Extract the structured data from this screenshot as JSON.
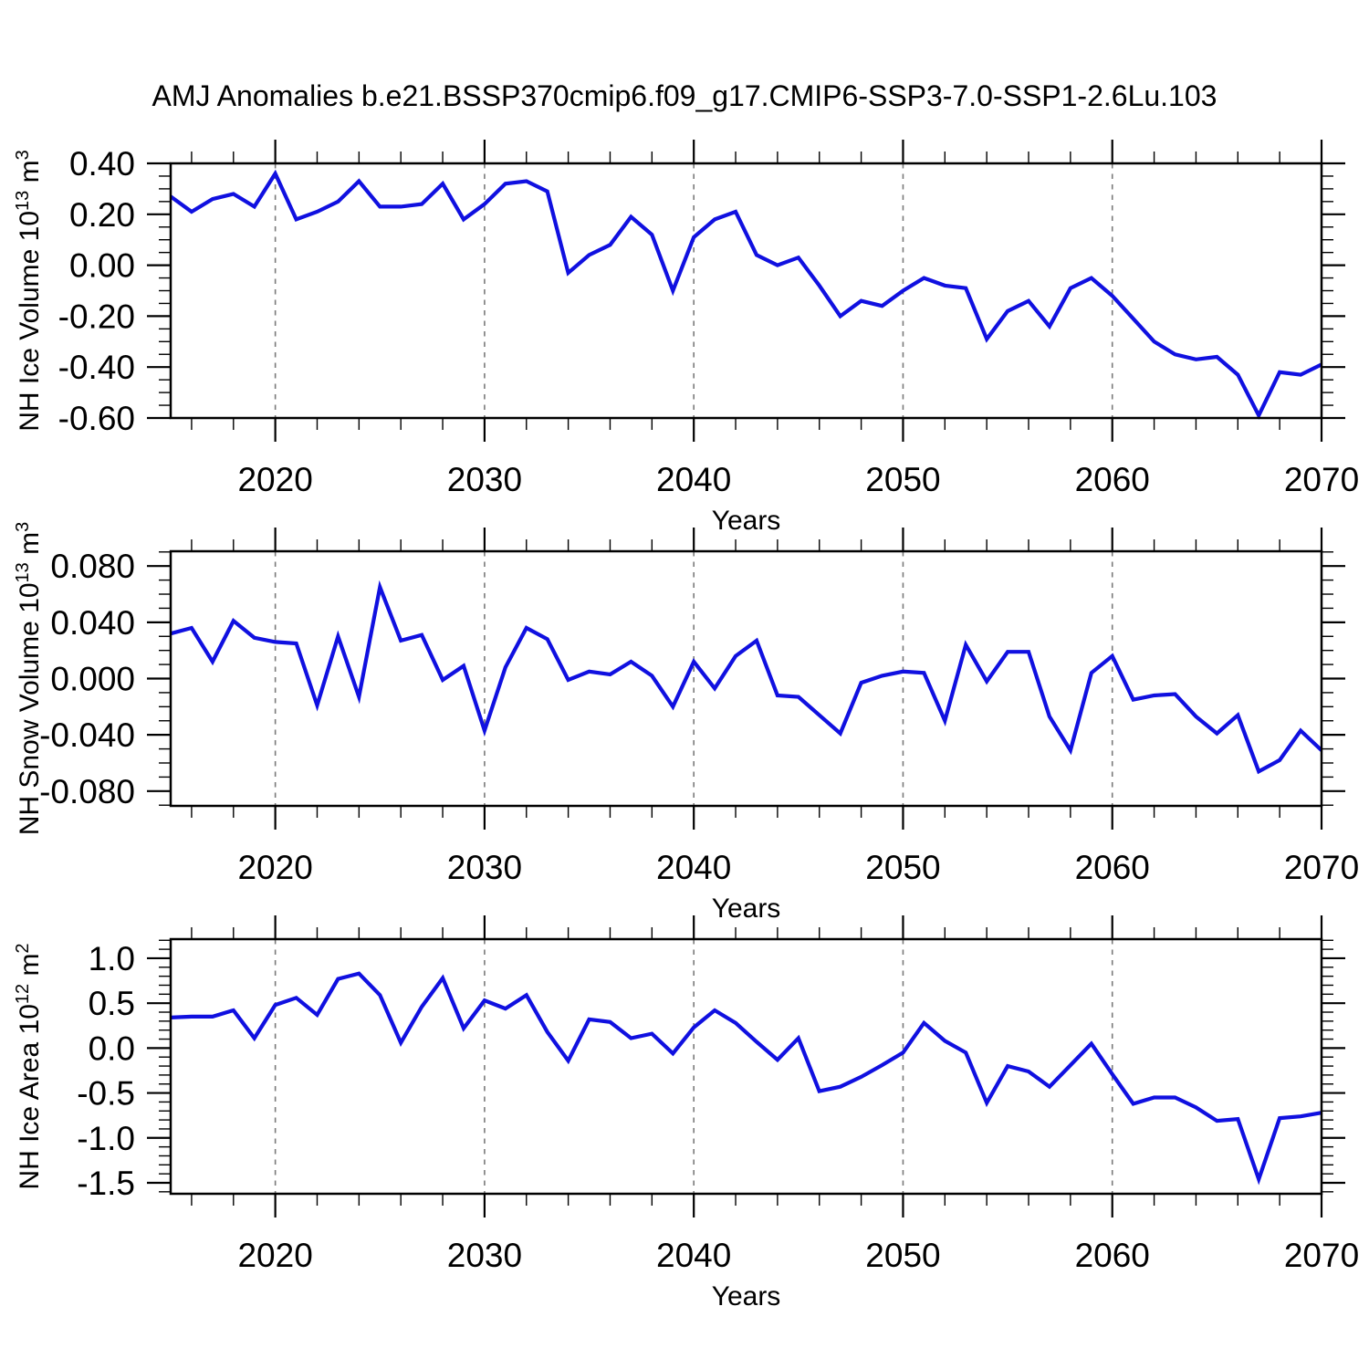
{
  "title": "AMJ Anomalies b.e21.BSSP370cmip6.f09_g17.CMIP6-SSP3-7.0-SSP1-2.6Lu.103",
  "x_axis": {
    "label": "Years",
    "start": 2015,
    "end": 2070,
    "major_ticks": [
      2020,
      2030,
      2040,
      2050,
      2060,
      2070
    ],
    "major_tick_labels": [
      "2020",
      "2030",
      "2040",
      "2050",
      "2060",
      "2070"
    ],
    "minor_tick_step": 2,
    "grid_years": [
      2020,
      2030,
      2040,
      2050,
      2060
    ]
  },
  "style": {
    "line_color": "#1010e0",
    "grid_color": "#7a7a7a",
    "axis_color": "#000000",
    "background": "#ffffff"
  },
  "chart_data": [
    {
      "type": "line",
      "name": "nh-ice-volume",
      "ylabel": "NH Ice Volume 10¹³ m³",
      "ylabel_parts": [
        {
          "t": "NH Ice Volume 10"
        },
        {
          "t": "13",
          "sup": true
        },
        {
          "t": " m"
        },
        {
          "t": "3",
          "sup": true
        }
      ],
      "ylim": [
        -0.6,
        0.4
      ],
      "yticks": [
        {
          "v": 0.4,
          "label": "0.40"
        },
        {
          "v": 0.2,
          "label": "0.20"
        },
        {
          "v": 0.0,
          "label": "0.00"
        },
        {
          "v": -0.2,
          "label": "-0.20"
        },
        {
          "v": -0.4,
          "label": "-0.40"
        },
        {
          "v": -0.6,
          "label": "-0.60"
        }
      ],
      "y_major_step": 0.2,
      "y_minor_step": 0.05,
      "x_start": 2015,
      "x_step": 1,
      "values": [
        0.27,
        0.21,
        0.26,
        0.28,
        0.23,
        0.36,
        0.18,
        0.21,
        0.25,
        0.33,
        0.23,
        0.23,
        0.24,
        0.32,
        0.18,
        0.24,
        0.32,
        0.33,
        0.29,
        -0.03,
        0.04,
        0.08,
        0.19,
        0.12,
        -0.1,
        0.11,
        0.18,
        0.21,
        0.04,
        0.0,
        0.03,
        -0.08,
        -0.2,
        -0.14,
        -0.16,
        -0.1,
        -0.05,
        -0.08,
        -0.09,
        -0.29,
        -0.18,
        -0.14,
        -0.24,
        -0.09,
        -0.05,
        -0.12,
        -0.21,
        -0.3,
        -0.35,
        -0.37,
        -0.36,
        -0.43,
        -0.59,
        -0.42,
        -0.43,
        -0.39
      ]
    },
    {
      "type": "line",
      "name": "nh-snow-volume",
      "ylabel": "NH Snow Volume 10¹³ m³",
      "ylabel_parts": [
        {
          "t": "NH Snow Volume 10"
        },
        {
          "t": "13",
          "sup": true
        },
        {
          "t": " m"
        },
        {
          "t": "3",
          "sup": true
        }
      ],
      "ylim": [
        -0.0905,
        0.0905
      ],
      "yticks": [
        {
          "v": 0.08,
          "label": "0.080"
        },
        {
          "v": 0.04,
          "label": "0.040"
        },
        {
          "v": 0.0,
          "label": "0.000"
        },
        {
          "v": -0.04,
          "label": "-0.040"
        },
        {
          "v": -0.08,
          "label": "-0.080"
        }
      ],
      "y_major_step": 0.04,
      "y_minor_step": 0.01,
      "x_start": 2015,
      "x_step": 1,
      "values": [
        0.032,
        0.036,
        0.012,
        0.041,
        0.029,
        0.026,
        0.025,
        -0.019,
        0.03,
        -0.013,
        0.065,
        0.027,
        0.031,
        -0.001,
        0.009,
        -0.037,
        0.008,
        0.036,
        0.028,
        -0.001,
        0.005,
        0.003,
        0.012,
        0.002,
        -0.02,
        0.012,
        -0.007,
        0.016,
        0.027,
        -0.012,
        -0.013,
        -0.026,
        -0.039,
        -0.003,
        0.002,
        0.005,
        0.004,
        -0.03,
        0.024,
        -0.002,
        0.019,
        0.019,
        -0.027,
        -0.051,
        0.004,
        0.016,
        -0.015,
        -0.012,
        -0.011,
        -0.027,
        -0.039,
        -0.026,
        -0.066,
        -0.058,
        -0.037,
        -0.051
      ]
    },
    {
      "type": "line",
      "name": "nh-ice-area",
      "ylabel": "NH Ice Area 10¹² m²",
      "ylabel_parts": [
        {
          "t": "NH Ice Area 10"
        },
        {
          "t": "12",
          "sup": true
        },
        {
          "t": " m"
        },
        {
          "t": "2",
          "sup": true
        }
      ],
      "ylim": [
        -1.622,
        1.213
      ],
      "yticks": [
        {
          "v": 1.0,
          "label": "1.0"
        },
        {
          "v": 0.5,
          "label": "0.5"
        },
        {
          "v": 0.0,
          "label": "0.0"
        },
        {
          "v": -0.5,
          "label": "-0.5"
        },
        {
          "v": -1.0,
          "label": "-1.0"
        },
        {
          "v": -1.5,
          "label": "-1.5"
        }
      ],
      "y_major_step": 0.5,
      "y_minor_step": 0.1,
      "x_start": 2015,
      "x_step": 1,
      "values": [
        0.34,
        0.35,
        0.35,
        0.42,
        0.11,
        0.48,
        0.56,
        0.37,
        0.77,
        0.83,
        0.59,
        0.06,
        0.46,
        0.78,
        0.22,
        0.53,
        0.44,
        0.59,
        0.18,
        -0.14,
        0.32,
        0.29,
        0.11,
        0.16,
        -0.06,
        0.23,
        0.42,
        0.28,
        0.07,
        -0.13,
        0.11,
        -0.48,
        -0.43,
        -0.32,
        -0.19,
        -0.05,
        0.28,
        0.08,
        -0.05,
        -0.61,
        -0.2,
        -0.26,
        -0.43,
        -0.19,
        0.05,
        -0.29,
        -0.62,
        -0.55,
        -0.55,
        -0.66,
        -0.81,
        -0.79,
        -1.46,
        -0.78,
        -0.76,
        -0.72
      ]
    }
  ]
}
